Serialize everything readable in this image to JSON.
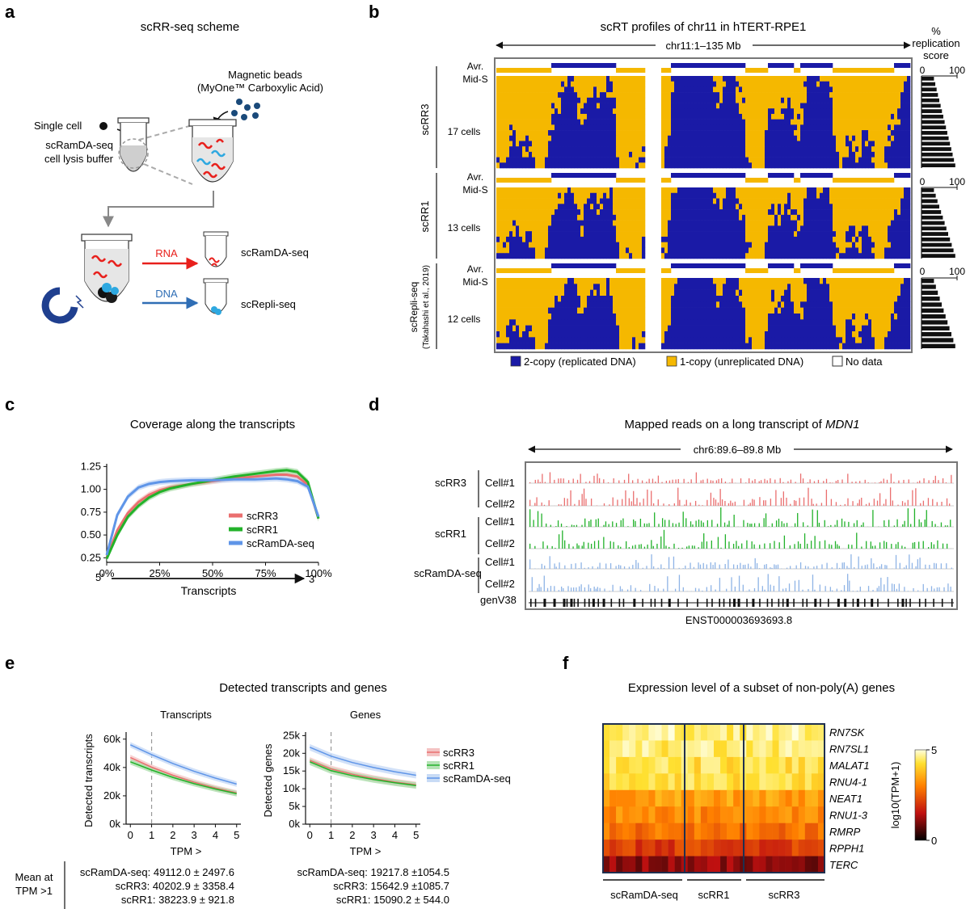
{
  "panels": {
    "a": {
      "letter": "a",
      "title": "scRR-seq scheme",
      "single_cell": "Single cell",
      "beads_line1": "Magnetic beads",
      "beads_line2": "(MyOne™ Carboxylic Acid)",
      "buffer_line1": "scRamDA-seq",
      "buffer_line2": "cell lysis buffer",
      "rna_label": "RNA",
      "dna_label": "DNA",
      "rna_out": "scRamDA-seq",
      "dna_out": "scRepli-seq",
      "colors": {
        "rna": "#e8201c",
        "dna": "#2f6eb5",
        "beads": "#1a4a7a",
        "magnet": "#1f3f8f"
      }
    },
    "b": {
      "letter": "b",
      "title": "scRT profiles of chr11 in hTERT-RPE1",
      "range": "chr11:1–135 Mb",
      "score_title": [
        "%",
        "replication",
        "score"
      ],
      "scale_min": "0",
      "scale_max": "100",
      "groups": [
        {
          "name": "scRR3",
          "avr1": "Avr.",
          "avr2": "Mid-S",
          "cells": "17 cells",
          "n": 17
        },
        {
          "name": "scRR1",
          "avr1": "Avr.",
          "avr2": "Mid-S",
          "cells": "13 cells",
          "n": 13
        },
        {
          "name": "scRepli-seq",
          "sub": "(Takahashi et al., 2019)",
          "avr1": "Avr.",
          "avr2": "Mid-S",
          "cells": "12 cells",
          "n": 12
        }
      ],
      "legend": {
        "copy2": "2-copy (replicated DNA)",
        "copy1": "1-copy (unreplicated DNA)",
        "nodata": "No data"
      },
      "colors": {
        "replicated": "#1a1aa6",
        "unreplicated": "#f5b800"
      }
    },
    "c": {
      "letter": "c",
      "title": "Coverage along the transcripts",
      "xlabel_left": "5′",
      "xlabel_right": "3′",
      "xlabel": "Transcripts"
    },
    "d": {
      "letter": "d",
      "title_prefix": "Mapped reads on a long transcript of ",
      "title_gene": "MDN1",
      "range": "chr6:89.6–89.8 Mb",
      "groups": [
        {
          "name": "scRR3",
          "cell1": "Cell#1",
          "cell2": "Cell#2",
          "color": "#ea6f6f"
        },
        {
          "name": "scRR1",
          "cell1": "Cell#1",
          "cell2": "Cell#2",
          "color": "#22b22a"
        },
        {
          "name": "scRamDA-seq",
          "cell1": "Cell#1",
          "cell2": "Cell#2",
          "color": "#8fb4e6"
        }
      ],
      "gene_track": "genV38",
      "transcript_id": "ENST000003693693.8"
    },
    "e": {
      "letter": "e",
      "title": "Detected transcripts and genes",
      "mean_line1": "Mean at",
      "mean_line2": "TPM >1",
      "stats_transcripts": [
        "scRamDA-seq: 49112.0 ± 2497.6",
        "scRR3: 40202.9 ± 3358.4",
        "scRR1: 38223.9 ±  921.8"
      ],
      "stats_genes": [
        "scRamDA-seq: 19217.8 ±1054.5",
        "scRR3: 15642.9 ±1085.7",
        "scRR1: 15090.2 ± 544.0"
      ]
    },
    "f": {
      "letter": "f",
      "title": "Expression level of a subset of non-poly(A) genes",
      "genes": [
        "RN7SK",
        "RN7SL1",
        "MALAT1",
        "RNU4-1",
        "NEAT1",
        "RNU1-3",
        "RMRP",
        "RPPH1",
        "TERC"
      ],
      "groups": [
        "scRamDA-seq",
        "scRR1",
        "scRR3"
      ],
      "colorbar_label": "log10(TPM+1)",
      "colorbar_max": "5",
      "colorbar_min": "0"
    }
  },
  "chart_data": [
    {
      "id": "c",
      "type": "line",
      "title": "Coverage along the transcripts",
      "xlabel": "Transcripts",
      "ylabel": "",
      "x": [
        0,
        5,
        10,
        15,
        20,
        25,
        30,
        40,
        50,
        60,
        70,
        80,
        85,
        90,
        95,
        100
      ],
      "xticks": [
        "0%",
        "25%",
        "50%",
        "75%",
        "100%"
      ],
      "yticks": [
        "0.25",
        "0.50",
        "0.75",
        "1.00",
        "1.25"
      ],
      "xlim": [
        0,
        100
      ],
      "ylim": [
        0.2,
        1.28
      ],
      "series": [
        {
          "name": "scRR3",
          "color": "#ea6f6f",
          "values": [
            0.25,
            0.55,
            0.74,
            0.86,
            0.94,
            0.99,
            1.02,
            1.06,
            1.09,
            1.12,
            1.14,
            1.16,
            1.16,
            1.14,
            1.05,
            0.68
          ]
        },
        {
          "name": "scRR1",
          "color": "#22b22a",
          "values": [
            0.24,
            0.5,
            0.7,
            0.82,
            0.91,
            0.97,
            1.01,
            1.06,
            1.1,
            1.14,
            1.17,
            1.2,
            1.21,
            1.19,
            1.08,
            0.68
          ]
        },
        {
          "name": "scRamDA-seq",
          "color": "#5f95e8",
          "values": [
            0.28,
            0.72,
            0.92,
            1.02,
            1.06,
            1.08,
            1.09,
            1.1,
            1.1,
            1.11,
            1.11,
            1.12,
            1.11,
            1.09,
            1.03,
            0.7
          ]
        }
      ]
    },
    {
      "id": "e-transcripts",
      "type": "line",
      "title": "Transcripts",
      "xlabel": "TPM >",
      "ylabel": "Detected transcripts",
      "x": [
        0,
        1,
        2,
        3,
        4,
        5
      ],
      "xticks": [
        "0",
        "1",
        "2",
        "3",
        "4",
        "5"
      ],
      "yticks": [
        "0k",
        "20k",
        "40k",
        "60k"
      ],
      "xlim": [
        -0.2,
        5.2
      ],
      "ylim": [
        0,
        65000
      ],
      "series": [
        {
          "name": "scRR3",
          "color": "#ea6f6f",
          "values": [
            47000,
            40200,
            34500,
            29600,
            25500,
            22000
          ]
        },
        {
          "name": "scRR1",
          "color": "#22b22a",
          "values": [
            44000,
            38200,
            33000,
            28600,
            24800,
            21500
          ]
        },
        {
          "name": "scRamDA-seq",
          "color": "#5f95e8",
          "values": [
            56000,
            49100,
            42800,
            37300,
            32500,
            28300
          ]
        }
      ]
    },
    {
      "id": "e-genes",
      "type": "line",
      "title": "Genes",
      "xlabel": "TPM >",
      "ylabel": "Detected genes",
      "x": [
        0,
        1,
        2,
        3,
        4,
        5
      ],
      "xticks": [
        "0",
        "1",
        "2",
        "3",
        "4",
        "5"
      ],
      "yticks": [
        "0k",
        "5k",
        "10k",
        "15k",
        "20k",
        "25k"
      ],
      "xlim": [
        -0.2,
        5.2
      ],
      "ylim": [
        0,
        26000
      ],
      "series": [
        {
          "name": "scRR3",
          "color": "#ea6f6f",
          "values": [
            18000,
            15600,
            14100,
            12900,
            11900,
            11100
          ]
        },
        {
          "name": "scRR1",
          "color": "#22b22a",
          "values": [
            17600,
            15100,
            13700,
            12600,
            11700,
            10900
          ]
        },
        {
          "name": "scRamDA-seq",
          "color": "#5f95e8",
          "values": [
            21700,
            19200,
            17400,
            16000,
            14800,
            13800
          ]
        }
      ]
    }
  ]
}
